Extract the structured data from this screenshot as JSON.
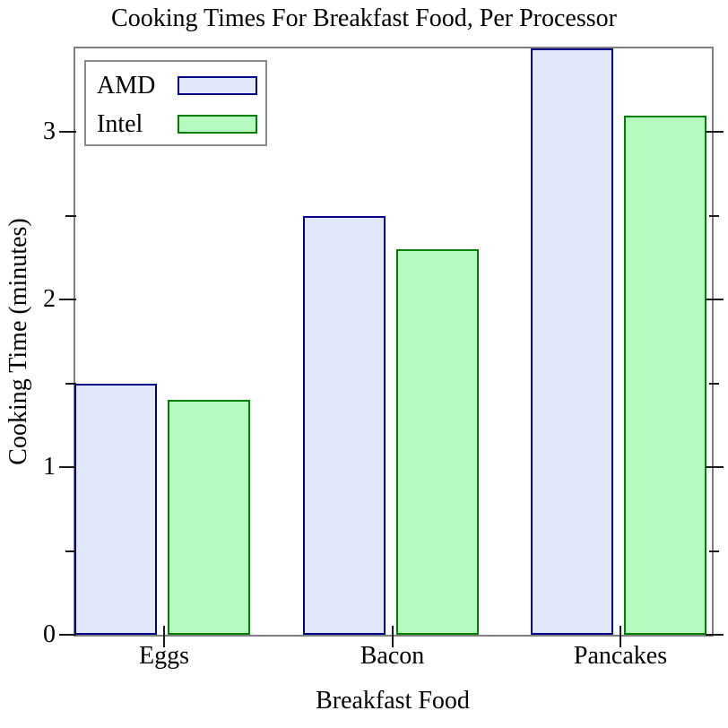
{
  "chart_data": {
    "type": "bar",
    "title": "Cooking Times For Breakfast Food, Per Processor",
    "xlabel": "Breakfast Food",
    "ylabel": "Cooking Time (minutes)",
    "categories": [
      "Eggs",
      "Bacon",
      "Pancakes"
    ],
    "series": [
      {
        "name": "AMD",
        "values": [
          1.5,
          2.5,
          3.5
        ],
        "fill": "#e2e7fa",
        "border": "#00008b"
      },
      {
        "name": "Intel",
        "values": [
          1.4,
          2.3,
          3.1
        ],
        "fill": "#b7fac0",
        "border": "#008000"
      }
    ],
    "ylim": [
      0,
      3.5
    ],
    "yticks_major": [
      0,
      1,
      2,
      3
    ],
    "ytick_labels": [
      "0",
      "1",
      "2",
      "3"
    ],
    "yticks_minor": [
      0.5,
      1.5,
      2.5
    ],
    "legend_position": "top-left",
    "grid": false,
    "axis_border_color": "#808080",
    "tick_color": "#1a1a1a"
  }
}
